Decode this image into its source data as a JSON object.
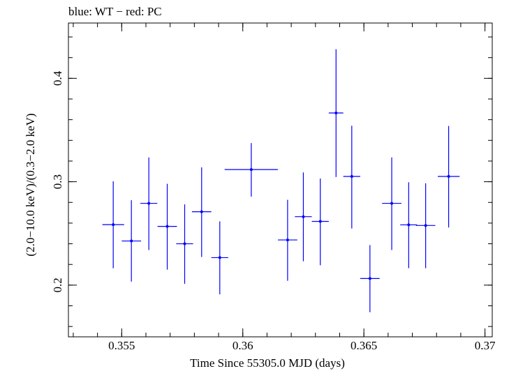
{
  "chart_data": {
    "type": "scatter",
    "title": "blue: WT − red: PC",
    "xlabel": "Time Since 55305.0 MJD (days)",
    "ylabel": "(2.0−10.0 keV)/(0.3−2.0 keV)",
    "xlim": [
      0.3528,
      0.3703
    ],
    "ylim": [
      0.15,
      0.4535
    ],
    "x_ticks": [
      {
        "value": 0.355,
        "label": "0.355"
      },
      {
        "value": 0.36,
        "label": "0.36"
      },
      {
        "value": 0.365,
        "label": "0.365"
      },
      {
        "value": 0.37,
        "label": "0.37"
      }
    ],
    "y_ticks": [
      {
        "value": 0.2,
        "label": "0.2"
      },
      {
        "value": 0.3,
        "label": "0.3"
      },
      {
        "value": 0.4,
        "label": "0.4"
      }
    ],
    "x_minor_step": 0.001,
    "y_minor_step": 0.02,
    "series": [
      {
        "name": "WT",
        "color": "#0000ff",
        "points": [
          {
            "x": 0.35465,
            "xerr": 0.00045,
            "y": 0.2585,
            "ylo": 0.2163,
            "yhi": 0.3004
          },
          {
            "x": 0.3554,
            "xerr": 0.0004,
            "y": 0.2427,
            "ylo": 0.2034,
            "yhi": 0.2821
          },
          {
            "x": 0.35612,
            "xerr": 0.00035,
            "y": 0.2791,
            "ylo": 0.234,
            "yhi": 0.3235
          },
          {
            "x": 0.35688,
            "xerr": 0.0004,
            "y": 0.2568,
            "ylo": 0.215,
            "yhi": 0.298
          },
          {
            "x": 0.3576,
            "xerr": 0.00035,
            "y": 0.24,
            "ylo": 0.2013,
            "yhi": 0.2781
          },
          {
            "x": 0.3583,
            "xerr": 0.0004,
            "y": 0.271,
            "ylo": 0.2272,
            "yhi": 0.3139
          },
          {
            "x": 0.35905,
            "xerr": 0.00035,
            "y": 0.2266,
            "ylo": 0.1911,
            "yhi": 0.2617
          },
          {
            "x": 0.36035,
            "xerr": 0.0011,
            "y": 0.3118,
            "ylo": 0.2856,
            "yhi": 0.3374
          },
          {
            "x": 0.36185,
            "xerr": 0.0004,
            "y": 0.2437,
            "ylo": 0.2042,
            "yhi": 0.2825
          },
          {
            "x": 0.3625,
            "xerr": 0.00035,
            "y": 0.2662,
            "ylo": 0.2231,
            "yhi": 0.309
          },
          {
            "x": 0.3632,
            "xerr": 0.00035,
            "y": 0.2616,
            "ylo": 0.2192,
            "yhi": 0.3031
          },
          {
            "x": 0.36385,
            "xerr": 0.0003,
            "y": 0.3665,
            "ylo": 0.3045,
            "yhi": 0.4281
          },
          {
            "x": 0.3645,
            "xerr": 0.00035,
            "y": 0.3051,
            "ylo": 0.2548,
            "yhi": 0.3542
          },
          {
            "x": 0.36525,
            "xerr": 0.0004,
            "y": 0.2064,
            "ylo": 0.1738,
            "yhi": 0.2387
          },
          {
            "x": 0.36615,
            "xerr": 0.0004,
            "y": 0.2791,
            "ylo": 0.234,
            "yhi": 0.3235
          },
          {
            "x": 0.36685,
            "xerr": 0.00035,
            "y": 0.2583,
            "ylo": 0.2164,
            "yhi": 0.2995
          },
          {
            "x": 0.36755,
            "xerr": 0.0004,
            "y": 0.2577,
            "ylo": 0.2164,
            "yhi": 0.2985
          },
          {
            "x": 0.3685,
            "xerr": 0.00045,
            "y": 0.3051,
            "ylo": 0.2557,
            "yhi": 0.3539
          }
        ]
      }
    ],
    "grid": false
  }
}
